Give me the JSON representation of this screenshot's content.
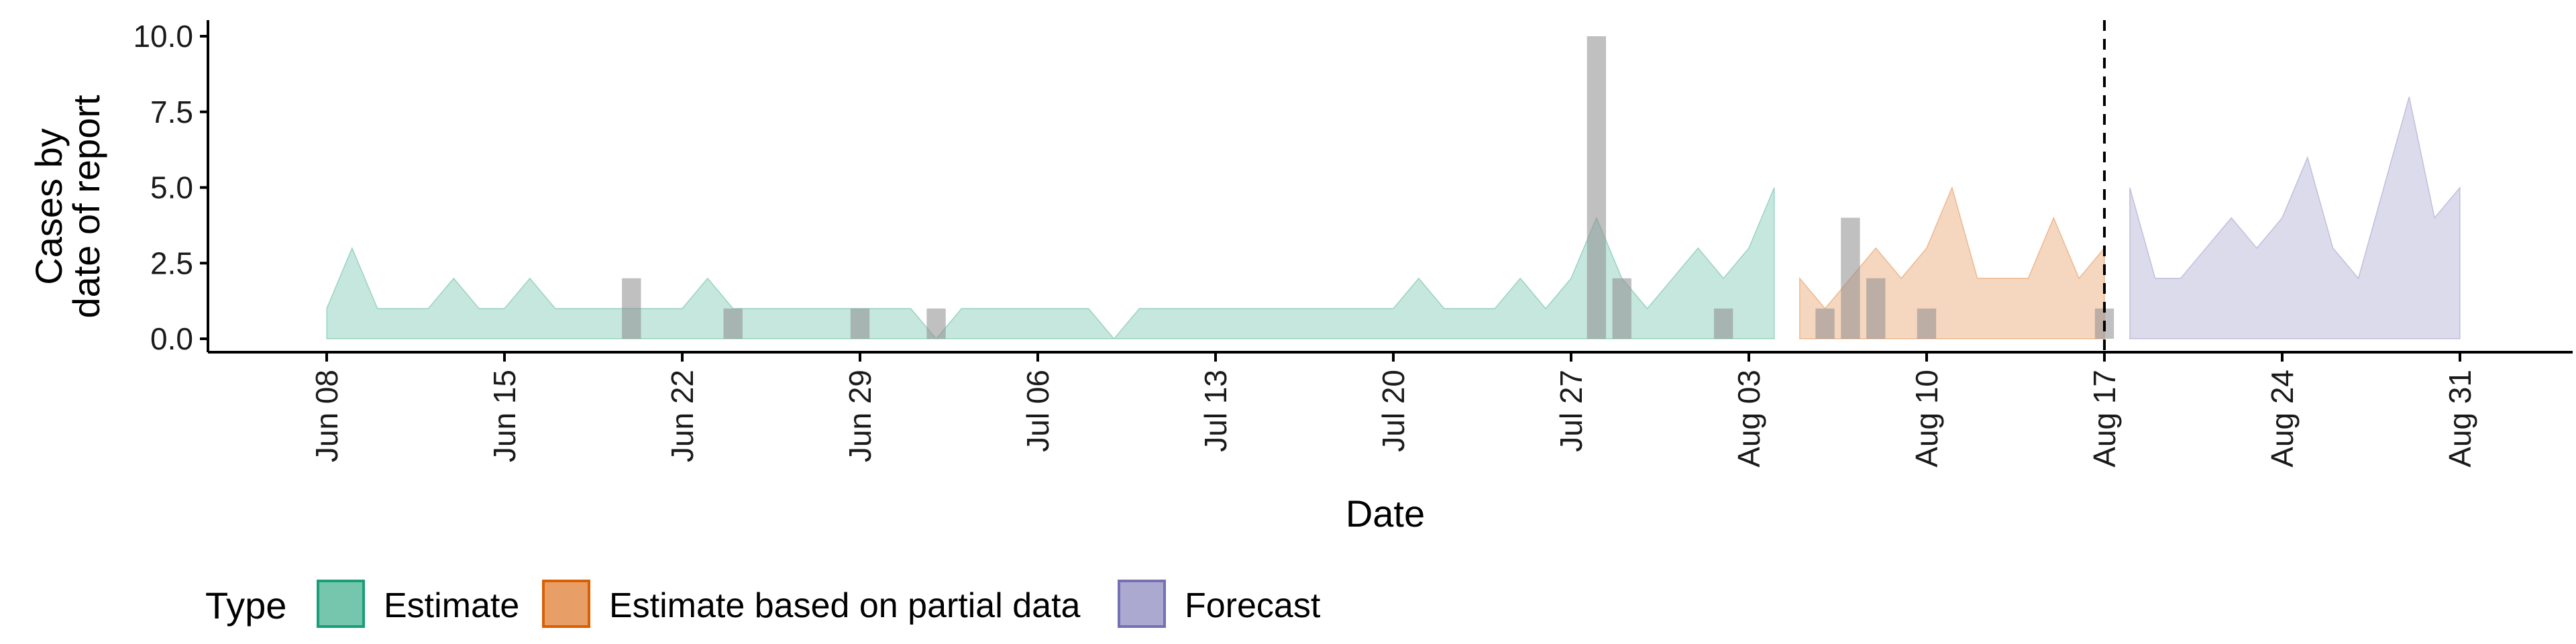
{
  "chart_data": {
    "type": "area",
    "xlabel": "Date",
    "ylabel_line1": "Cases by",
    "ylabel_line2": "date of report",
    "ylim": [
      0,
      10.5
    ],
    "yticks": [
      {
        "value": 0,
        "label": "0.0"
      },
      {
        "value": 2.5,
        "label": "2.5"
      },
      {
        "value": 5,
        "label": "5.0"
      },
      {
        "value": 7.5,
        "label": "7.5"
      },
      {
        "value": 10,
        "label": "10.0"
      }
    ],
    "xticks": [
      {
        "day": 0,
        "label": "Jun 08"
      },
      {
        "day": 7,
        "label": "Jun 15"
      },
      {
        "day": 14,
        "label": "Jun 22"
      },
      {
        "day": 21,
        "label": "Jun 29"
      },
      {
        "day": 28,
        "label": "Jul 06"
      },
      {
        "day": 35,
        "label": "Jul 13"
      },
      {
        "day": 42,
        "label": "Jul 20"
      },
      {
        "day": 49,
        "label": "Jul 27"
      },
      {
        "day": 56,
        "label": "Aug 03"
      },
      {
        "day": 63,
        "label": "Aug 10"
      },
      {
        "day": 70,
        "label": "Aug 17"
      },
      {
        "day": 77,
        "label": "Aug 24"
      },
      {
        "day": 84,
        "label": "Aug 31"
      }
    ],
    "xlim_days": [
      -4.7,
      88.7
    ],
    "vline_day": 70,
    "series": [
      {
        "name": "Estimate",
        "color": "#1b9e77",
        "days": [
          0,
          1,
          2,
          3,
          4,
          5,
          6,
          7,
          8,
          9,
          10,
          11,
          12,
          13,
          14,
          15,
          16,
          17,
          18,
          19,
          20,
          21,
          22,
          23,
          24,
          25,
          26,
          27,
          28,
          29,
          30,
          31,
          32,
          33,
          34,
          35,
          36,
          37,
          38,
          39,
          40,
          41,
          42,
          43,
          44,
          45,
          46,
          47,
          48,
          49,
          50,
          51,
          52,
          53,
          54,
          55,
          56,
          57
        ],
        "values": [
          1,
          3,
          1,
          1,
          1,
          2,
          1,
          1,
          2,
          1,
          1,
          1,
          1,
          1,
          1,
          2,
          1,
          1,
          1,
          1,
          1,
          1,
          1,
          1,
          0,
          1,
          1,
          1,
          1,
          1,
          1,
          0,
          1,
          1,
          1,
          1,
          1,
          1,
          1,
          1,
          1,
          1,
          1,
          2,
          1,
          1,
          1,
          2,
          1,
          2,
          4,
          2,
          1,
          2,
          3,
          2,
          3,
          5
        ]
      },
      {
        "name": "Estimate based on partial data",
        "color": "#d95f02",
        "days": [
          58,
          59,
          60,
          61,
          62,
          63,
          64,
          65,
          66,
          67,
          68,
          69,
          70
        ],
        "values": [
          2,
          1,
          2,
          3,
          2,
          3,
          5,
          2,
          2,
          2,
          4,
          2,
          3
        ]
      },
      {
        "name": "Forecast",
        "color": "#7570b3",
        "days": [
          71,
          72,
          73,
          74,
          75,
          76,
          77,
          78,
          79,
          80,
          81,
          82,
          83,
          84
        ],
        "values": [
          5,
          2,
          2,
          3,
          4,
          3,
          4,
          6,
          3,
          2,
          5,
          8,
          4,
          5
        ]
      }
    ],
    "observed": {
      "color": "#8c8c8c",
      "days": [
        12,
        16,
        21,
        24,
        50,
        51,
        55,
        59,
        60,
        61,
        63,
        70
      ],
      "values": [
        2,
        1,
        1,
        1,
        10,
        2,
        1,
        1,
        4,
        2,
        1,
        1
      ]
    },
    "legend": {
      "title": "Type",
      "placement": "bottom",
      "items": [
        {
          "label": "Estimate",
          "color": "#1b9e77"
        },
        {
          "label": "Estimate based on partial data",
          "color": "#d95f02"
        },
        {
          "label": "Forecast",
          "color": "#7570b3"
        }
      ]
    }
  }
}
